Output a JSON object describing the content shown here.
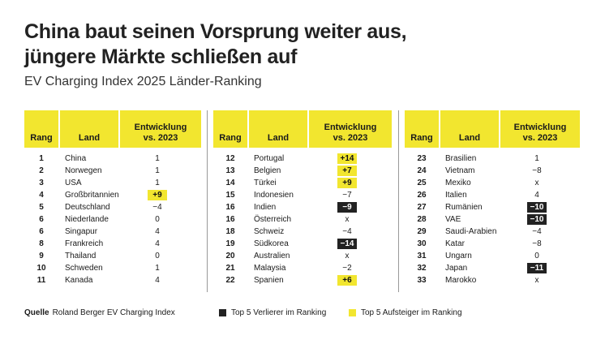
{
  "title_line1": "China baut seinen Vorsprung weiter aus,",
  "title_line2": "jüngere Märkte schließen auf",
  "subtitle": "EV Charging Index 2025 Länder-Ranking",
  "headers": {
    "rank": "Rang",
    "land": "Land",
    "dev_line1": "Entwicklung",
    "dev_line2": "vs. 2023"
  },
  "colors": {
    "accent_yellow": "#f2e62f",
    "dark": "#222222"
  },
  "table1": [
    {
      "rank": "1",
      "land": "China",
      "dev": "1",
      "mark": ""
    },
    {
      "rank": "2",
      "land": "Norwegen",
      "dev": "1",
      "mark": ""
    },
    {
      "rank": "3",
      "land": "USA",
      "dev": "1",
      "mark": ""
    },
    {
      "rank": "4",
      "land": "Großbritannien",
      "dev": "+9",
      "mark": "up"
    },
    {
      "rank": "5",
      "land": "Deutschland",
      "dev": "−4",
      "mark": ""
    },
    {
      "rank": "6",
      "land": "Niederlande",
      "dev": "0",
      "mark": ""
    },
    {
      "rank": "6",
      "land": "Singapur",
      "dev": "4",
      "mark": ""
    },
    {
      "rank": "8",
      "land": "Frankreich",
      "dev": "4",
      "mark": ""
    },
    {
      "rank": "9",
      "land": "Thailand",
      "dev": "0",
      "mark": ""
    },
    {
      "rank": "10",
      "land": "Schweden",
      "dev": "1",
      "mark": ""
    },
    {
      "rank": "11",
      "land": "Kanada",
      "dev": "4",
      "mark": ""
    }
  ],
  "table2": [
    {
      "rank": "12",
      "land": "Portugal",
      "dev": "+14",
      "mark": "up"
    },
    {
      "rank": "13",
      "land": "Belgien",
      "dev": "+7",
      "mark": "up"
    },
    {
      "rank": "14",
      "land": "Türkei",
      "dev": "+9",
      "mark": "up"
    },
    {
      "rank": "15",
      "land": "Indonesien",
      "dev": "−7",
      "mark": ""
    },
    {
      "rank": "16",
      "land": "Indien",
      "dev": "−9",
      "mark": "down"
    },
    {
      "rank": "16",
      "land": "Österreich",
      "dev": "x",
      "mark": ""
    },
    {
      "rank": "18",
      "land": "Schweiz",
      "dev": "−4",
      "mark": ""
    },
    {
      "rank": "19",
      "land": "Südkorea",
      "dev": "−14",
      "mark": "down"
    },
    {
      "rank": "20",
      "land": "Australien",
      "dev": "x",
      "mark": ""
    },
    {
      "rank": "21",
      "land": "Malaysia",
      "dev": "−2",
      "mark": ""
    },
    {
      "rank": "22",
      "land": "Spanien",
      "dev": "+6",
      "mark": "up"
    }
  ],
  "table3": [
    {
      "rank": "23",
      "land": "Brasilien",
      "dev": "1",
      "mark": ""
    },
    {
      "rank": "24",
      "land": "Vietnam",
      "dev": "−8",
      "mark": ""
    },
    {
      "rank": "25",
      "land": "Mexiko",
      "dev": "x",
      "mark": ""
    },
    {
      "rank": "26",
      "land": "Italien",
      "dev": "4",
      "mark": ""
    },
    {
      "rank": "27",
      "land": "Rumänien",
      "dev": "−10",
      "mark": "down"
    },
    {
      "rank": "28",
      "land": "VAE",
      "dev": "−10",
      "mark": "down"
    },
    {
      "rank": "29",
      "land": "Saudi-Arabien",
      "dev": "−4",
      "mark": ""
    },
    {
      "rank": "30",
      "land": "Katar",
      "dev": "−8",
      "mark": ""
    },
    {
      "rank": "31",
      "land": "Ungarn",
      "dev": "0",
      "mark": ""
    },
    {
      "rank": "32",
      "land": "Japan",
      "dev": "−11",
      "mark": "down"
    },
    {
      "rank": "33",
      "land": "Marokko",
      "dev": "x",
      "mark": ""
    }
  ],
  "footer": {
    "source_label": "Quelle",
    "source_text": "Roland Berger EV Charging Index",
    "legend_losers": "Top 5 Verlierer im Ranking",
    "legend_risers": "Top 5 Aufsteiger im Ranking"
  }
}
